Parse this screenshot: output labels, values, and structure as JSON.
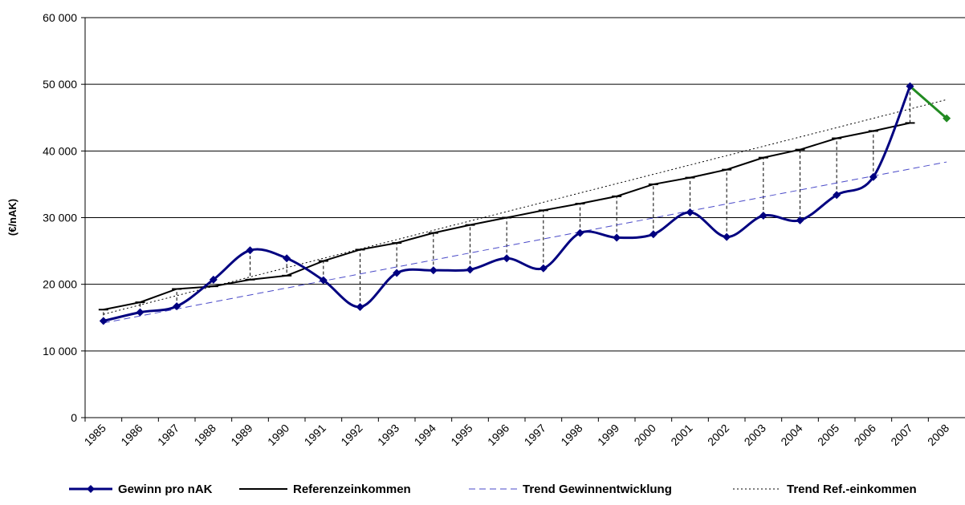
{
  "chart_data": {
    "type": "line",
    "y_label": "(€/nAK)",
    "categories": [
      "1985",
      "1986",
      "1987",
      "1988",
      "1989",
      "1990",
      "1991",
      "1992",
      "1993",
      "1994",
      "1995",
      "1996",
      "1997",
      "1998",
      "1999",
      "2000",
      "2001",
      "2002",
      "2003",
      "2004",
      "2005",
      "2006",
      "2007",
      "2008"
    ],
    "ylim": [
      0,
      60000
    ],
    "yticks": [
      {
        "value": 0,
        "label": "0"
      },
      {
        "value": 10000,
        "label": "10 000"
      },
      {
        "value": 20000,
        "label": "20 000"
      },
      {
        "value": 30000,
        "label": "30 000"
      },
      {
        "value": 40000,
        "label": "40 000"
      },
      {
        "value": 50000,
        "label": "50 000"
      },
      {
        "value": 60000,
        "label": "60 000"
      }
    ],
    "grid": true,
    "droplines": true,
    "series": [
      {
        "name": "Gewinn pro nAK",
        "color": "#000080",
        "style": "smooth",
        "marker": "diamond",
        "values": [
          14500,
          15800,
          16700,
          20700,
          25100,
          23900,
          20600,
          16600,
          21700,
          22100,
          22200,
          23900,
          22400,
          27700,
          27000,
          27500,
          30800,
          27100,
          30300,
          29600,
          33400,
          36100,
          49700,
          44900
        ],
        "point_colors": [
          "#000080",
          "#000080",
          "#000080",
          "#000080",
          "#000080",
          "#000080",
          "#000080",
          "#000080",
          "#000080",
          "#000080",
          "#000080",
          "#000080",
          "#000080",
          "#000080",
          "#000080",
          "#000080",
          "#000080",
          "#000080",
          "#000080",
          "#000080",
          "#000080",
          "#000080",
          "#000080",
          "#228b22"
        ]
      },
      {
        "name": "Referenzeinkommen",
        "color": "#000000",
        "style": "solid",
        "marker": "dash",
        "values": [
          16200,
          17300,
          19300,
          19700,
          20700,
          21300,
          23500,
          25200,
          26200,
          27700,
          28900,
          30000,
          31100,
          32100,
          33200,
          35000,
          36000,
          37200,
          39000,
          40200,
          41900,
          43000,
          44200,
          null
        ]
      },
      {
        "name": "Trend Gewinnentwicklung",
        "color": "#4a4ac8",
        "style": "dashed",
        "marker": "none",
        "values": [
          14200,
          15250,
          16300,
          17350,
          18400,
          19450,
          20500,
          21550,
          22600,
          23650,
          24700,
          25750,
          26800,
          27850,
          28900,
          29950,
          31000,
          32050,
          33100,
          34150,
          35200,
          36250,
          37300,
          38350
        ]
      },
      {
        "name": "Trend Ref.-einkommen",
        "color": "#000000",
        "style": "dotted",
        "marker": "none",
        "values": [
          15500,
          16900,
          18300,
          19700,
          21100,
          22500,
          23900,
          25300,
          26700,
          28100,
          29500,
          30900,
          32300,
          33700,
          35100,
          36500,
          37900,
          39300,
          40700,
          42100,
          43500,
          44900,
          46300,
          47700
        ]
      }
    ]
  }
}
